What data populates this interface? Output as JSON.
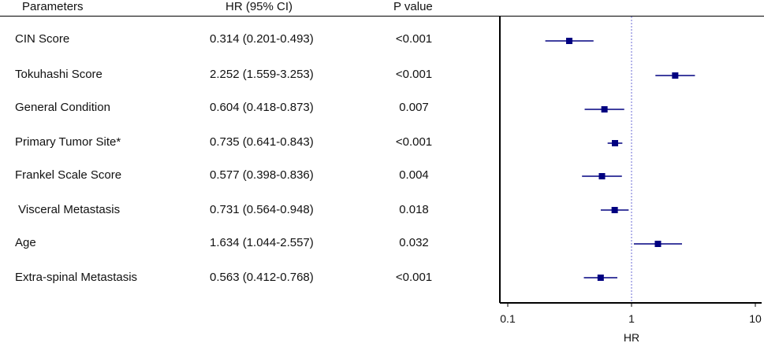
{
  "header": {
    "parameters": "Parameters",
    "hr": "HR (95% CI)",
    "p": "P value"
  },
  "rows": [
    {
      "name": "CIN Score",
      "hr_text": "0.314 (0.201-0.493)",
      "p": "<0.001"
    },
    {
      "name": "Tokuhashi Score",
      "hr_text": "2.252 (1.559-3.253)",
      "p": "<0.001"
    },
    {
      "name": "General Condition",
      "hr_text": "0.604 (0.418-0.873)",
      "p": "0.007"
    },
    {
      "name": "Primary Tumor Site*",
      "hr_text": "0.735 (0.641-0.843)",
      "p": "<0.001"
    },
    {
      "name": "Frankel Scale Score",
      "hr_text": "0.577 (0.398-0.836)",
      "p": "0.004"
    },
    {
      "name": " Visceral Metastasis",
      "hr_text": "0.731 (0.564-0.948)",
      "p": "0.018"
    },
    {
      "name": "Age",
      "hr_text": "1.634 (1.044-2.557)",
      "p": "0.032"
    },
    {
      "name": "Extra-spinal Metastasis",
      "hr_text": "0.563 (0.412-0.768)",
      "p": "<0.001"
    }
  ],
  "chart_data": {
    "type": "forest",
    "xlabel": "HR",
    "xscale": "log",
    "xlim": [
      0.1,
      10
    ],
    "xticks": [
      0.1,
      1,
      10
    ],
    "xtick_labels": [
      "0.1",
      "1",
      "10"
    ],
    "reference_line": 1,
    "categories": [
      "CIN Score",
      "Tokuhashi Score",
      "General Condition",
      "Primary Tumor Site*",
      "Frankel Scale Score",
      "Visceral Metastasis",
      "Age",
      "Extra-spinal Metastasis"
    ],
    "hr": [
      0.314,
      2.252,
      0.604,
      0.735,
      0.577,
      0.731,
      1.634,
      0.563
    ],
    "ci_low": [
      0.201,
      1.559,
      0.418,
      0.641,
      0.398,
      0.564,
      1.044,
      0.412
    ],
    "ci_high": [
      0.493,
      3.253,
      0.873,
      0.843,
      0.836,
      0.948,
      2.557,
      0.768
    ],
    "colors": {
      "marker": "#000080",
      "reference": "#6b6bd6",
      "axis": "#000000"
    }
  }
}
